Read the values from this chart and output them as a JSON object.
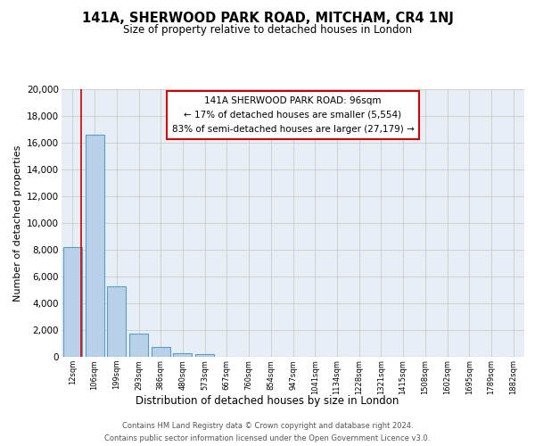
{
  "title": "141A, SHERWOOD PARK ROAD, MITCHAM, CR4 1NJ",
  "subtitle": "Size of property relative to detached houses in London",
  "bar_labels": [
    "12sqm",
    "106sqm",
    "199sqm",
    "293sqm",
    "386sqm",
    "480sqm",
    "573sqm",
    "667sqm",
    "760sqm",
    "854sqm",
    "947sqm",
    "1041sqm",
    "1134sqm",
    "1228sqm",
    "1321sqm",
    "1415sqm",
    "1508sqm",
    "1602sqm",
    "1695sqm",
    "1789sqm",
    "1882sqm"
  ],
  "bar_values": [
    8200,
    16600,
    5300,
    1750,
    750,
    280,
    220,
    0,
    0,
    0,
    0,
    0,
    0,
    0,
    0,
    0,
    0,
    0,
    0,
    0,
    0
  ],
  "bar_color": "#b8d0e8",
  "bar_edge_color": "#5a9ec9",
  "grid_color": "#cccccc",
  "bg_color": "#e8eef5",
  "ylabel": "Number of detached properties",
  "xlabel": "Distribution of detached houses by size in London",
  "annotation_line1": "141A SHERWOOD PARK ROAD: 96sqm",
  "annotation_line2": "← 17% of detached houses are smaller (5,554)",
  "annotation_line3": "83% of semi-detached houses are larger (27,179) →",
  "annotation_box_color": "#ffffff",
  "annotation_box_edge_color": "#cc0000",
  "footer_line1": "Contains HM Land Registry data © Crown copyright and database right 2024.",
  "footer_line2": "Contains public sector information licensed under the Open Government Licence v3.0.",
  "ylim": [
    0,
    20000
  ],
  "yticks": [
    0,
    2000,
    4000,
    6000,
    8000,
    10000,
    12000,
    14000,
    16000,
    18000,
    20000
  ]
}
